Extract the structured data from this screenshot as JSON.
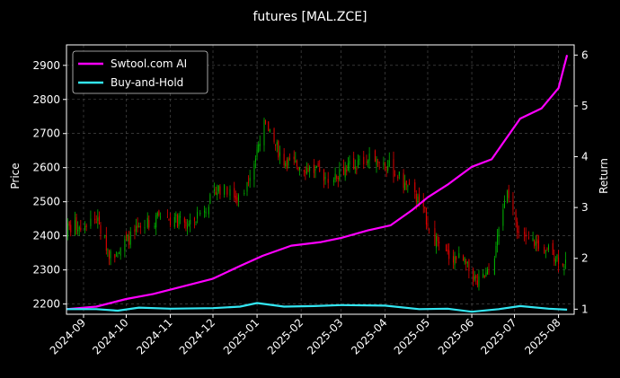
{
  "title": "futures [MAL.ZCE]",
  "chart_data": {
    "type": "line",
    "title": "futures [MAL.ZCE]",
    "xlabel": "",
    "ylabel": "Price",
    "y2label": "Return",
    "xlim": [
      "2024-08-20",
      "2025-08-12"
    ],
    "ylim": [
      2170,
      2960
    ],
    "y2lim": [
      0.9,
      6.2
    ],
    "x_ticks": [
      "2024-09",
      "2024-10",
      "2024-11",
      "2024-12",
      "2025-01",
      "2025-02",
      "2025-03",
      "2025-04",
      "2025-05",
      "2025-06",
      "2025-07",
      "2025-08"
    ],
    "y_ticks": [
      2200,
      2300,
      2400,
      2500,
      2600,
      2700,
      2800,
      2900
    ],
    "y2_ticks": [
      1,
      2,
      3,
      4,
      5,
      6
    ],
    "grid": true,
    "legend_position": "upper-left",
    "colors": {
      "background": "#000000",
      "up": "#00b300",
      "down": "#e60000",
      "grid": "#555555",
      "swtool": "#ff00ff",
      "buy_hold": "#33e6f2"
    },
    "candle_anchors": {
      "description_dates": [
        "2024-08-20",
        "2024-09-10",
        "2024-09-20",
        "2024-10-05",
        "2024-10-25",
        "2024-11-15",
        "2024-12-05",
        "2024-12-20",
        "2024-12-31",
        "2025-01-05",
        "2025-01-20",
        "2025-02-05",
        "2025-02-20",
        "2025-03-05",
        "2025-03-25",
        "2025-04-05",
        "2025-04-25",
        "2025-05-10",
        "2025-05-25",
        "2025-06-05",
        "2025-06-15",
        "2025-06-25",
        "2025-07-05",
        "2025-07-20",
        "2025-08-06"
      ],
      "close": [
        2420,
        2450,
        2340,
        2400,
        2460,
        2430,
        2540,
        2510,
        2630,
        2730,
        2620,
        2600,
        2570,
        2600,
        2630,
        2600,
        2500,
        2350,
        2330,
        2260,
        2300,
        2530,
        2400,
        2370,
        2320
      ]
    },
    "series": [
      {
        "name": "Swtool.com AI",
        "axis": "right",
        "x": [
          "2024-08-20",
          "2024-09-10",
          "2024-10-01",
          "2024-10-20",
          "2024-11-10",
          "2024-12-01",
          "2024-12-20",
          "2025-01-05",
          "2025-01-25",
          "2025-02-15",
          "2025-03-01",
          "2025-03-20",
          "2025-04-05",
          "2025-04-20",
          "2025-05-01",
          "2025-05-15",
          "2025-06-01",
          "2025-06-15",
          "2025-06-25",
          "2025-07-05",
          "2025-07-20",
          "2025-08-01",
          "2025-08-07"
        ],
        "values": [
          1.0,
          1.05,
          1.2,
          1.3,
          1.45,
          1.6,
          1.85,
          2.05,
          2.25,
          2.32,
          2.4,
          2.55,
          2.65,
          2.95,
          3.2,
          3.45,
          3.8,
          3.95,
          4.35,
          4.75,
          4.95,
          5.35,
          6.0
        ]
      },
      {
        "name": "Buy-and-Hold",
        "axis": "right",
        "x": [
          "2024-08-20",
          "2024-09-10",
          "2024-09-25",
          "2024-10-10",
          "2024-11-01",
          "2024-12-01",
          "2024-12-20",
          "2025-01-01",
          "2025-01-20",
          "2025-02-10",
          "2025-03-01",
          "2025-04-01",
          "2025-04-25",
          "2025-05-15",
          "2025-06-01",
          "2025-06-20",
          "2025-07-05",
          "2025-07-25",
          "2025-08-07"
        ],
        "values": [
          1.0,
          1.0,
          0.97,
          1.03,
          1.01,
          1.02,
          1.05,
          1.12,
          1.05,
          1.06,
          1.08,
          1.07,
          1.0,
          1.01,
          0.95,
          1.0,
          1.06,
          1.01,
          0.99
        ]
      }
    ]
  }
}
